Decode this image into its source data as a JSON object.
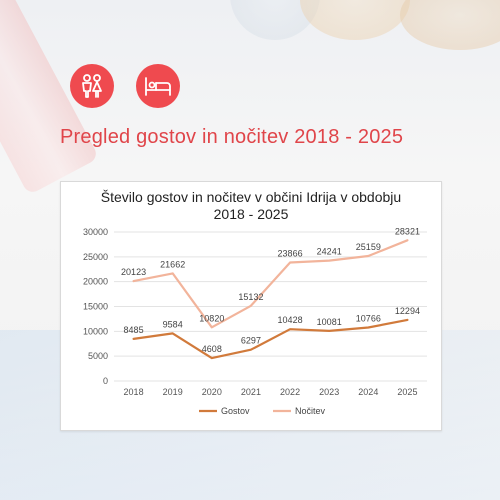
{
  "header": {
    "page_title": "Pregled gostov in nočitev 2018 - 2025",
    "icons": [
      "people-icon",
      "bed-icon"
    ],
    "accent_color": "#ef4a4f"
  },
  "chart_data": {
    "type": "line",
    "title_lines": [
      "Število gostov in nočitev v občini Idrija v obdobju",
      "2018 - 2025"
    ],
    "categories": [
      "2018",
      "2019",
      "2020",
      "2021",
      "2022",
      "2023",
      "2024",
      "2025"
    ],
    "series": [
      {
        "name": "Gostov",
        "color": "#d17a3b",
        "values": [
          8485,
          9584,
          4608,
          6297,
          10428,
          10081,
          10766,
          12294
        ]
      },
      {
        "name": "Nočitev",
        "color": "#f2b49b",
        "values": [
          20123,
          21662,
          10820,
          15132,
          23866,
          24241,
          25159,
          28321
        ]
      }
    ],
    "ylim": [
      0,
      30000
    ],
    "yticks": [
      "0",
      "5000",
      "10000",
      "15000",
      "20000",
      "25000",
      "30000"
    ],
    "grid": true,
    "legend_position": "bottom"
  }
}
